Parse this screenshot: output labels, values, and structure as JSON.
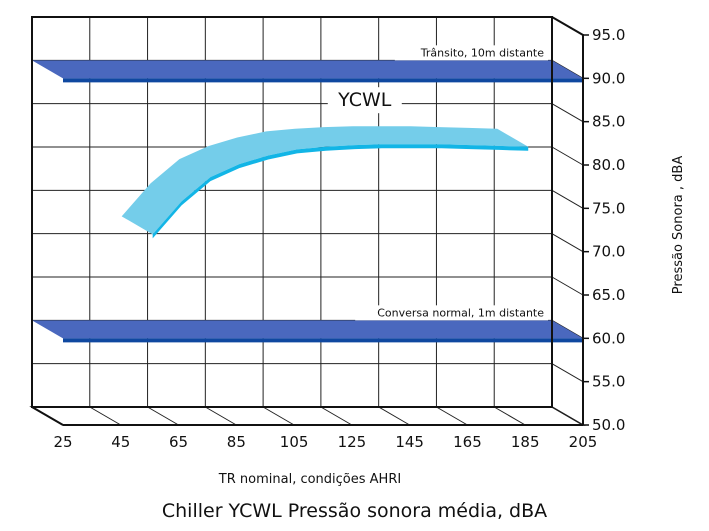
{
  "caption": "Chiller YCWL Pressão sonora média, dBA",
  "chart_data": {
    "type": "line",
    "title": "Chiller YCWL Pressão sonora média, dBA",
    "xlabel": "TR nominal, condições AHRI",
    "ylabel": "Pressão Sonora , dBA",
    "xlim": [
      25,
      205
    ],
    "ylim": [
      50,
      95
    ],
    "x_ticks": [
      "25",
      "45",
      "65",
      "85",
      "105",
      "125",
      "145",
      "165",
      "185",
      "205"
    ],
    "y_ticks": [
      "50.0",
      "55.0",
      "60.0",
      "65.0",
      "70.0",
      "75.0",
      "80.0",
      "85.0",
      "90.0",
      "95.0"
    ],
    "grid": true,
    "series": [
      {
        "name": "YCWL",
        "x": [
          55,
          65,
          75,
          85,
          95,
          105,
          115,
          125,
          135,
          145,
          155,
          165,
          175,
          185
        ],
        "y": [
          72.0,
          75.8,
          78.6,
          80.1,
          81.1,
          81.8,
          82.1,
          82.3,
          82.4,
          82.4,
          82.4,
          82.3,
          82.2,
          82.1
        ]
      }
    ],
    "reference_bands": [
      {
        "label": "Trânsito, 10m distante",
        "value": 90.0
      },
      {
        "label": "Conversa normal, 1m distante",
        "value": 60.0
      }
    ],
    "colors": {
      "band_top": "#4a68be",
      "band_front": "#0f48a0",
      "ribbon_top": "#74cdea",
      "ribbon_front": "#12b5e6"
    }
  }
}
